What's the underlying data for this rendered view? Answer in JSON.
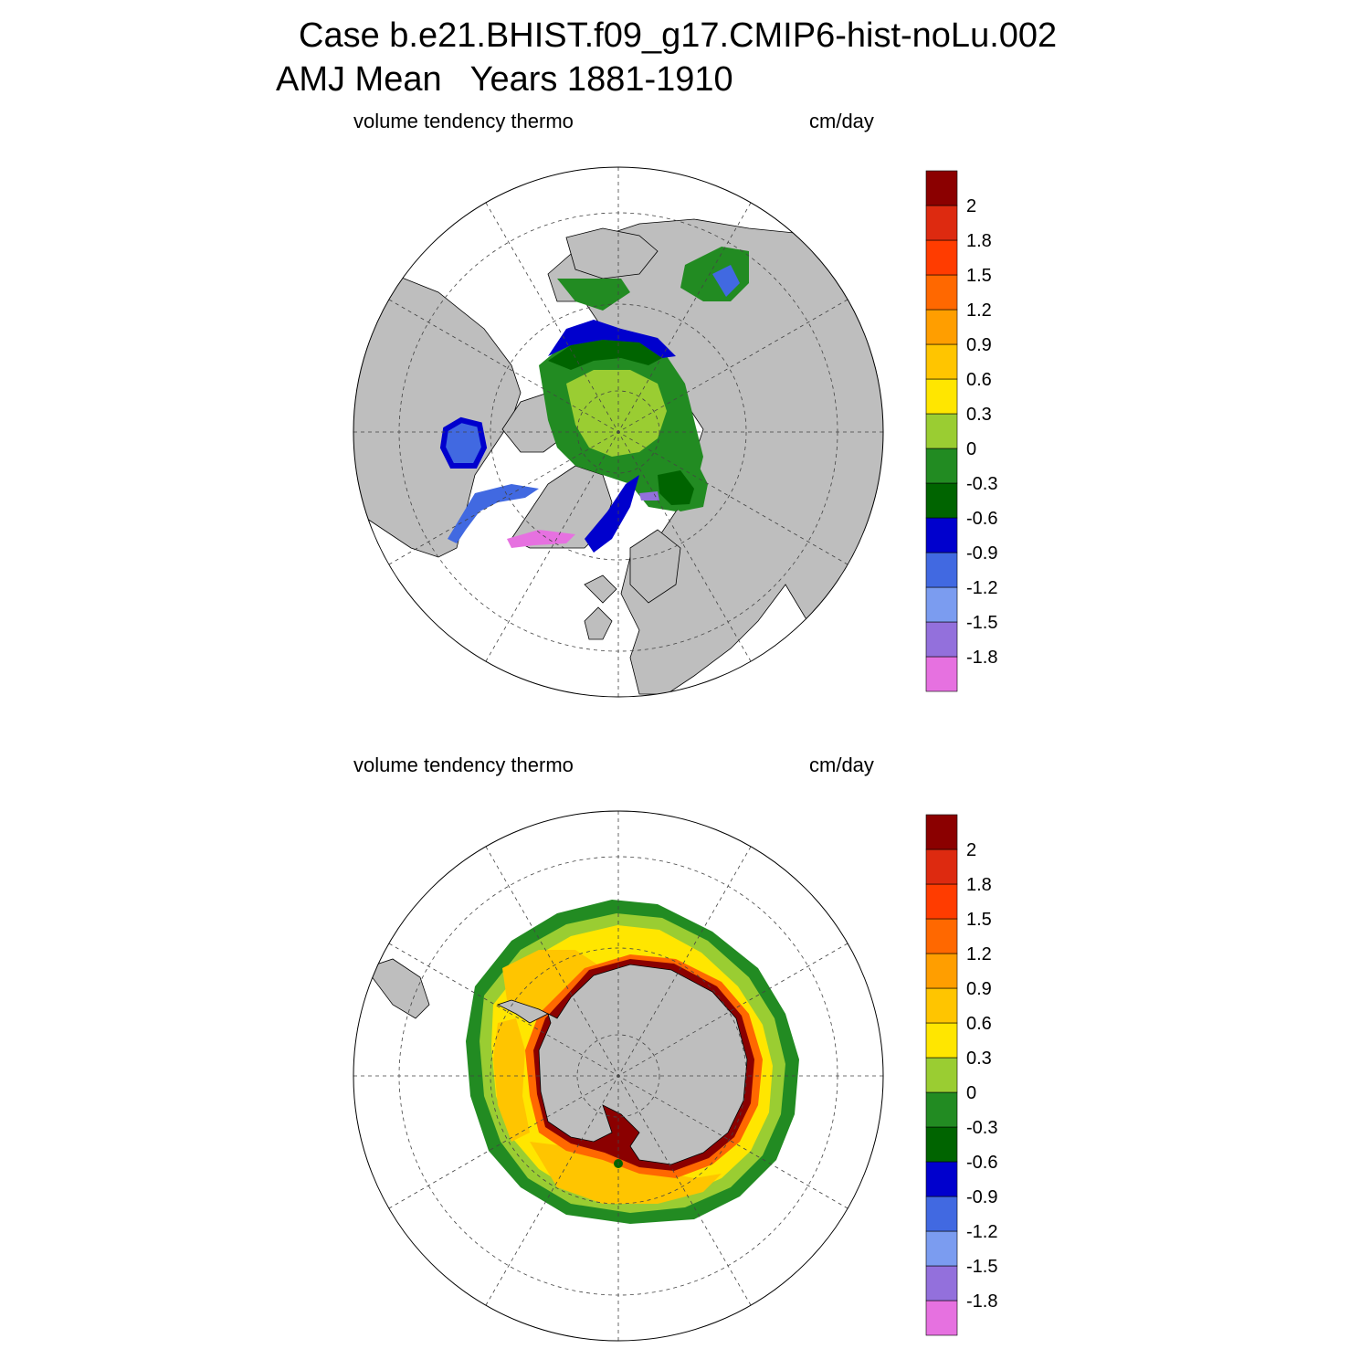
{
  "title": {
    "line1": "Case b.e21.BHIST.f09_g17.CMIP6-hist-noLu.002",
    "line2": "AMJ Mean   Years 1881-1910"
  },
  "colors": {
    "land": "#bebebe",
    "scale": [
      "#e671e0",
      "#9370dc",
      "#7b9cf0",
      "#4169e1",
      "#0000cd",
      "#006400",
      "#228b22",
      "#9acd32",
      "#ffe600",
      "#ffc500",
      "#ff9e00",
      "#ff6800",
      "#ff3c00",
      "#dd2a10",
      "#8b0000"
    ]
  },
  "panels": [
    {
      "id": "nh",
      "left_label": "volume tendency thermo",
      "right_label": "cm/day",
      "hemisphere": "north",
      "colorbar_labels": [
        "2",
        "1.8",
        "1.5",
        "1.2",
        "0.9",
        "0.6",
        "0.3",
        "0",
        "-0.3",
        "-0.6",
        "-0.9",
        "-1.2",
        "-1.5",
        "-1.8"
      ]
    },
    {
      "id": "sh",
      "left_label": "volume tendency thermo",
      "right_label": "cm/day",
      "hemisphere": "south",
      "colorbar_labels": [
        "2",
        "1.8",
        "1.5",
        "1.2",
        "0.9",
        "0.6",
        "0.3",
        "0",
        "-0.3",
        "-0.6",
        "-0.9",
        "-1.2",
        "-1.5",
        "-1.8"
      ]
    }
  ]
}
